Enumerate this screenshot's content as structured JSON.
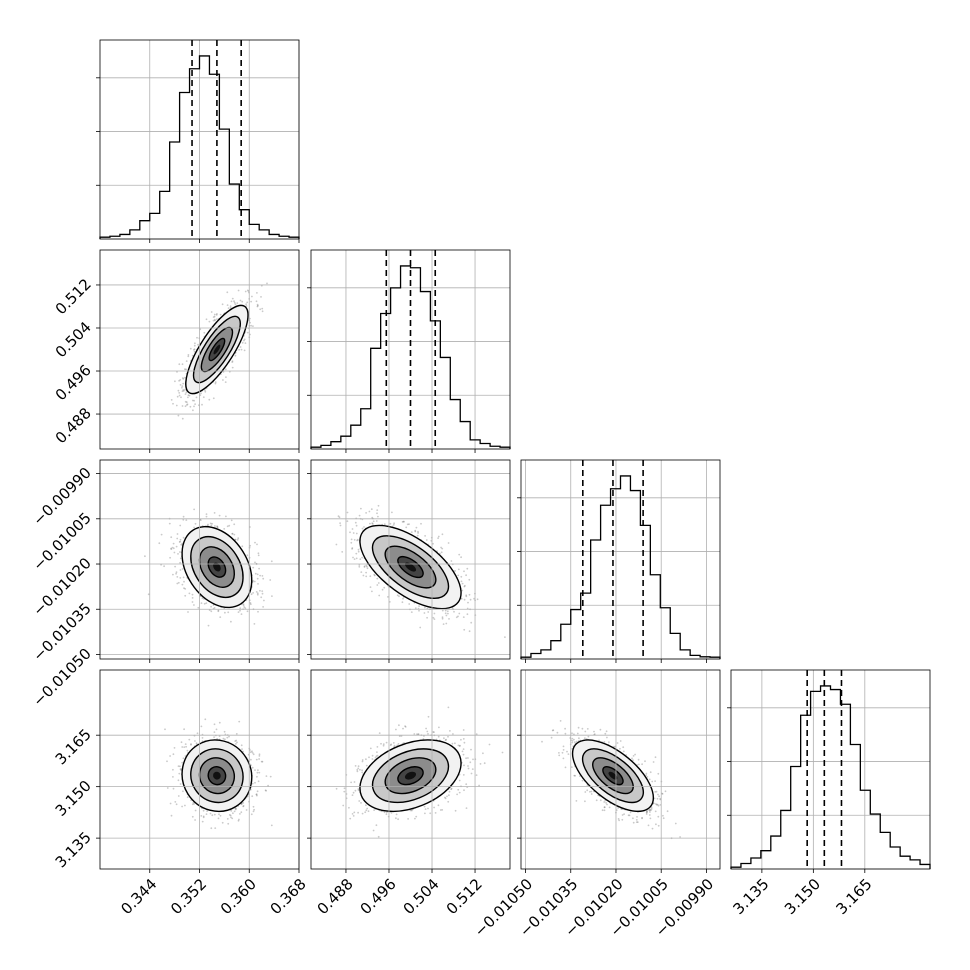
{
  "chart_data": {
    "type": "corner",
    "parameters": [
      {
        "index": 0,
        "range": [
          0.336,
          0.368
        ],
        "ticks": [
          0.344,
          0.352,
          0.36,
          0.368
        ],
        "tick_labels": [
          "0.344",
          "0.352",
          "0.360",
          "0.368"
        ],
        "quantiles": [
          0.3508,
          0.3548,
          0.3587
        ],
        "hist": [
          1,
          1.5,
          2.5,
          5,
          10,
          14,
          26,
          53,
          80,
          93,
          100,
          90,
          60,
          30,
          16,
          8,
          5,
          2.5,
          1.5,
          1
        ]
      },
      {
        "index": 1,
        "range": [
          0.4815,
          0.5185
        ],
        "ticks": [
          0.488,
          0.496,
          0.504,
          0.512
        ],
        "tick_labels": [
          "0.488",
          "0.496",
          "0.504",
          "0.512"
        ],
        "quantiles": [
          0.4955,
          0.5,
          0.5046
        ],
        "hist": [
          1,
          2,
          4,
          7,
          13,
          22,
          55,
          74,
          88,
          100,
          99,
          86,
          70,
          50,
          27,
          15,
          5,
          3,
          1.5,
          1
        ]
      },
      {
        "index": 2,
        "range": [
          -0.010515,
          -0.009855
        ],
        "ticks": [
          -0.0105,
          -0.01035,
          -0.0102,
          -0.01005,
          -0.0099
        ],
        "tick_labels": [
          "−0.01050",
          "−0.01035",
          "−0.01020",
          "−0.01005",
          "−0.00990"
        ],
        "quantiles": [
          -0.01031,
          -0.01021,
          -0.01011
        ],
        "hist": [
          1,
          3,
          5,
          10,
          19,
          27,
          36,
          65,
          84,
          93,
          100,
          92,
          73,
          46,
          28,
          14,
          5,
          2,
          1.2,
          1
        ]
      },
      {
        "index": 3,
        "range": [
          3.126,
          3.184
        ],
        "ticks": [
          3.135,
          3.15,
          3.165
        ],
        "tick_labels": [
          "3.135",
          "3.150",
          "3.165"
        ],
        "quantiles": [
          3.1482,
          3.1532,
          3.1582
        ],
        "hist": [
          1,
          3,
          6,
          10,
          18,
          32,
          56,
          84,
          97,
          100,
          98,
          90,
          68,
          43,
          30,
          20,
          12,
          7,
          5,
          2.5
        ]
      }
    ],
    "pairs": [
      {
        "row": 1,
        "col": 0,
        "mean": [
          0.3548,
          0.5
        ],
        "sigma": [
          0.0025,
          0.0041
        ],
        "corr": 0.78
      },
      {
        "row": 2,
        "col": 0,
        "mean": [
          0.3548,
          -0.01021
        ],
        "sigma": [
          0.0028,
          6.7e-05
        ],
        "corr": -0.33
      },
      {
        "row": 2,
        "col": 1,
        "mean": [
          0.5,
          -0.01021
        ],
        "sigma": [
          0.0047,
          6.9e-05
        ],
        "corr": -0.62
      },
      {
        "row": 3,
        "col": 0,
        "mean": [
          0.3548,
          3.1532
        ],
        "sigma": [
          0.0028,
          0.0052
        ],
        "corr": -0.05
      },
      {
        "row": 3,
        "col": 1,
        "mean": [
          0.5,
          3.1532
        ],
        "sigma": [
          0.0047,
          0.0052
        ],
        "corr": 0.35
      },
      {
        "row": 3,
        "col": 2,
        "mean": [
          -0.01021,
          3.1532
        ],
        "sigma": [
          6.7e-05,
          0.0052
        ],
        "corr": -0.62
      }
    ],
    "contour_levels": [
      0.5,
      1.0,
      1.5,
      2.0
    ],
    "grid": true,
    "colors": {
      "line": "#000000",
      "grid": "#b0b0b0",
      "scatter": "#666666",
      "density": "#000000"
    }
  }
}
